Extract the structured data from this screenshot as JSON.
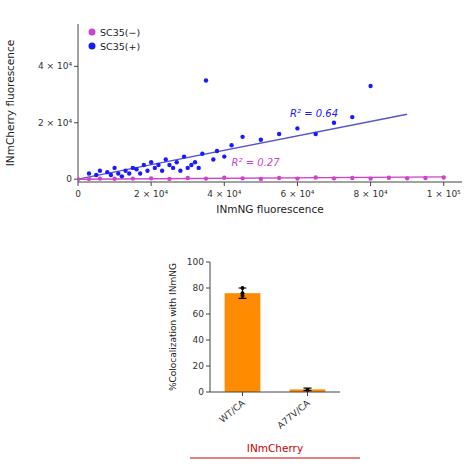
{
  "chart_data": [
    {
      "type": "scatter",
      "xlabel": "INmNG fluorescence",
      "ylabel": "INmCherry fluorescence",
      "xlim": [
        0,
        105000
      ],
      "ylim": [
        -1000,
        55000
      ],
      "xticks": [
        0,
        {
          "value": 20000,
          "label": "2 × 10⁴"
        },
        {
          "value": 40000,
          "label": "4 × 10⁴"
        },
        {
          "value": 60000,
          "label": "6 × 10⁴"
        },
        {
          "value": 80000,
          "label": "8 × 10⁴"
        },
        {
          "value": 100000,
          "label": "1 × 10⁵"
        }
      ],
      "yticks": [
        0,
        {
          "value": 20000,
          "label": "2 × 10⁴"
        },
        {
          "value": 40000,
          "label": "4 × 10⁴"
        }
      ],
      "grid": false,
      "legend": "upper left",
      "series": [
        {
          "type": "scatter",
          "name": "SC35(−)",
          "color": "#cc44cc",
          "x": [
            0,
            3000,
            6000,
            10000,
            15000,
            20000,
            25000,
            30000,
            35000,
            40000,
            45000,
            50000,
            55000,
            60000,
            65000,
            70000,
            75000,
            80000,
            85000,
            90000,
            95000,
            100000
          ],
          "values": [
            0,
            100,
            200,
            150,
            200,
            300,
            100,
            400,
            200,
            500,
            300,
            100,
            400,
            200,
            600,
            300,
            400,
            200,
            500,
            300,
            400,
            600
          ]
        },
        {
          "type": "scatter",
          "name": "SC35(+)",
          "color": "#1a1aff",
          "x": [
            3000,
            5000,
            6000,
            8000,
            9000,
            10000,
            11000,
            12000,
            13000,
            14000,
            15000,
            16000,
            17000,
            18000,
            19000,
            20000,
            21000,
            22000,
            23000,
            24000,
            25000,
            26000,
            27000,
            28000,
            29000,
            30000,
            31000,
            32000,
            33000,
            34000,
            35000,
            37000,
            38000,
            40000,
            42000,
            45000,
            50000,
            55000,
            60000,
            65000,
            70000,
            75000,
            80000
          ],
          "values": [
            2000,
            1500,
            3000,
            2500,
            1500,
            4000,
            2000,
            1000,
            3000,
            2000,
            4000,
            3500,
            2000,
            5000,
            3000,
            6000,
            4000,
            5000,
            3000,
            7000,
            5000,
            4000,
            6000,
            3000,
            8000,
            4000,
            5000,
            6000,
            4000,
            9000,
            35000,
            7000,
            10000,
            8000,
            12000,
            15000,
            14000,
            16000,
            18000,
            16000,
            20000,
            22000,
            33000
          ]
        },
        {
          "type": "line",
          "color": "#5555cc",
          "x": [
            0,
            90000
          ],
          "values": [
            0,
            23000
          ]
        },
        {
          "type": "line",
          "color": "#cc44cc",
          "x": [
            0,
            100000
          ],
          "values": [
            0,
            800
          ]
        }
      ],
      "annotations": [
        {
          "text": "R² = 0.64",
          "x": 58000,
          "y": 22000,
          "color": "#1a1aff"
        },
        {
          "text": "R² = 0.27",
          "x": 42000,
          "y": 4500,
          "color": "#cc44cc"
        }
      ]
    },
    {
      "type": "bar",
      "categories": [
        "WT/CA",
        "A77V/CA"
      ],
      "values": [
        76,
        2
      ],
      "errors": [
        4,
        1
      ],
      "points": [
        [
          76,
          80,
          74
        ],
        [
          1.5
        ]
      ],
      "color": "#FF8C00",
      "ylabel": "%Colocalization with INmNG",
      "xlabel": "INmCherry",
      "xlabel_color": "#CC0000",
      "ylim": [
        0,
        100
      ],
      "yticks": [
        0,
        20,
        40,
        60,
        80,
        100
      ],
      "grid": false
    }
  ]
}
